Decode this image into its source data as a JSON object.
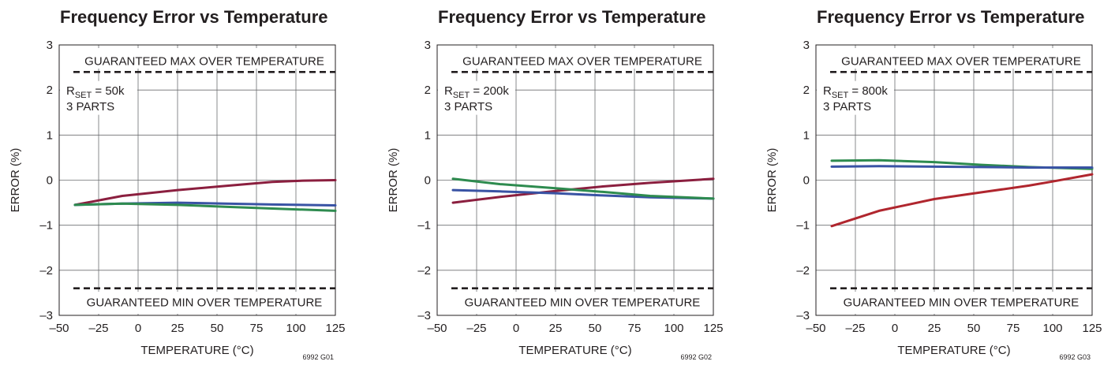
{
  "colors": {
    "red": "#8b1f3f",
    "blue": "#3953a4",
    "green": "#2e8b4f",
    "red_light": "#b0262e"
  },
  "chart_data": [
    {
      "type": "line",
      "title": "Frequency Error vs Temperature",
      "xlabel": "TEMPERATURE (°C)",
      "ylabel": "ERROR (%)",
      "xlim": [
        -50,
        125
      ],
      "ylim": [
        -3,
        3
      ],
      "xticks": [
        "–50",
        "–25",
        "0",
        "25",
        "50",
        "75",
        "100",
        "125"
      ],
      "yticks": [
        "3",
        "2",
        "1",
        "0",
        "–1",
        "–2",
        "–3"
      ],
      "grid": true,
      "guaranteed_max_label": "GUARANTEED MAX OVER TEMPERATURE",
      "guaranteed_max": 2.4,
      "guaranteed_min_label": "GUARANTEED MIN OVER TEMPERATURE",
      "guaranteed_min": -2.4,
      "rset_label": "R",
      "rset_sub": "SET",
      "rset_value": " = 50k",
      "parts_label": "3 PARTS",
      "figure_code": "6992 G01",
      "series": [
        {
          "color": "#8b1f3f",
          "x": [
            -40,
            -10,
            25,
            55,
            85,
            105,
            125
          ],
          "y": [
            -0.55,
            -0.35,
            -0.22,
            -0.13,
            -0.04,
            -0.01,
            0.0
          ]
        },
        {
          "color": "#3953a4",
          "x": [
            -40,
            -10,
            25,
            55,
            85,
            125
          ],
          "y": [
            -0.55,
            -0.52,
            -0.5,
            -0.52,
            -0.54,
            -0.56
          ]
        },
        {
          "color": "#2e8b4f",
          "x": [
            -40,
            -10,
            25,
            55,
            85,
            125
          ],
          "y": [
            -0.55,
            -0.52,
            -0.55,
            -0.59,
            -0.63,
            -0.68
          ]
        }
      ]
    },
    {
      "type": "line",
      "title": "Frequency Error vs Temperature",
      "xlabel": "TEMPERATURE (°C)",
      "ylabel": "ERROR (%)",
      "xlim": [
        -50,
        125
      ],
      "ylim": [
        -3,
        3
      ],
      "xticks": [
        "–50",
        "–25",
        "0",
        "25",
        "50",
        "75",
        "100",
        "125"
      ],
      "yticks": [
        "3",
        "2",
        "1",
        "0",
        "–1",
        "–2",
        "–3"
      ],
      "grid": true,
      "guaranteed_max_label": "GUARANTEED MAX OVER TEMPERATURE",
      "guaranteed_max": 2.4,
      "guaranteed_min_label": "GUARANTEED MIN OVER TEMPERATURE",
      "guaranteed_min": -2.4,
      "rset_label": "R",
      "rset_sub": "SET",
      "rset_value": " = 200k",
      "parts_label": "3 PARTS",
      "figure_code": "6992 G02",
      "series": [
        {
          "color": "#8b1f3f",
          "x": [
            -40,
            -10,
            25,
            55,
            85,
            125
          ],
          "y": [
            -0.5,
            -0.37,
            -0.24,
            -0.14,
            -0.06,
            0.03
          ]
        },
        {
          "color": "#3953a4",
          "x": [
            -40,
            -10,
            25,
            55,
            85,
            125
          ],
          "y": [
            -0.22,
            -0.25,
            -0.29,
            -0.34,
            -0.38,
            -0.41
          ]
        },
        {
          "color": "#2e8b4f",
          "x": [
            -40,
            -10,
            25,
            55,
            85,
            125
          ],
          "y": [
            0.03,
            -0.09,
            -0.18,
            -0.26,
            -0.35,
            -0.41
          ]
        }
      ]
    },
    {
      "type": "line",
      "title": "Frequency Error vs Temperature",
      "xlabel": "TEMPERATURE (°C)",
      "ylabel": "ERROR (%)",
      "xlim": [
        -50,
        125
      ],
      "ylim": [
        -3,
        3
      ],
      "xticks": [
        "–50",
        "–25",
        "0",
        "25",
        "50",
        "75",
        "100",
        "125"
      ],
      "yticks": [
        "3",
        "2",
        "1",
        "0",
        "–1",
        "–2",
        "–3"
      ],
      "grid": true,
      "guaranteed_max_label": "GUARANTEED MAX OVER TEMPERATURE",
      "guaranteed_max": 2.4,
      "guaranteed_min_label": "GUARANTEED MIN OVER TEMPERATURE",
      "guaranteed_min": -2.4,
      "rset_label": "R",
      "rset_sub": "SET",
      "rset_value": " = 800k",
      "parts_label": "3 PARTS",
      "figure_code": "6992 G03",
      "series": [
        {
          "color": "#2e8b4f",
          "x": [
            -40,
            -10,
            25,
            55,
            85,
            125
          ],
          "y": [
            0.43,
            0.44,
            0.4,
            0.34,
            0.29,
            0.25
          ]
        },
        {
          "color": "#3953a4",
          "x": [
            -40,
            -10,
            25,
            55,
            85,
            125
          ],
          "y": [
            0.3,
            0.31,
            0.3,
            0.29,
            0.28,
            0.28
          ]
        },
        {
          "color": "#b0262e",
          "x": [
            -40,
            -10,
            25,
            55,
            85,
            100,
            125
          ],
          "y": [
            -1.02,
            -0.68,
            -0.42,
            -0.27,
            -0.12,
            -0.03,
            0.13
          ]
        }
      ]
    }
  ]
}
